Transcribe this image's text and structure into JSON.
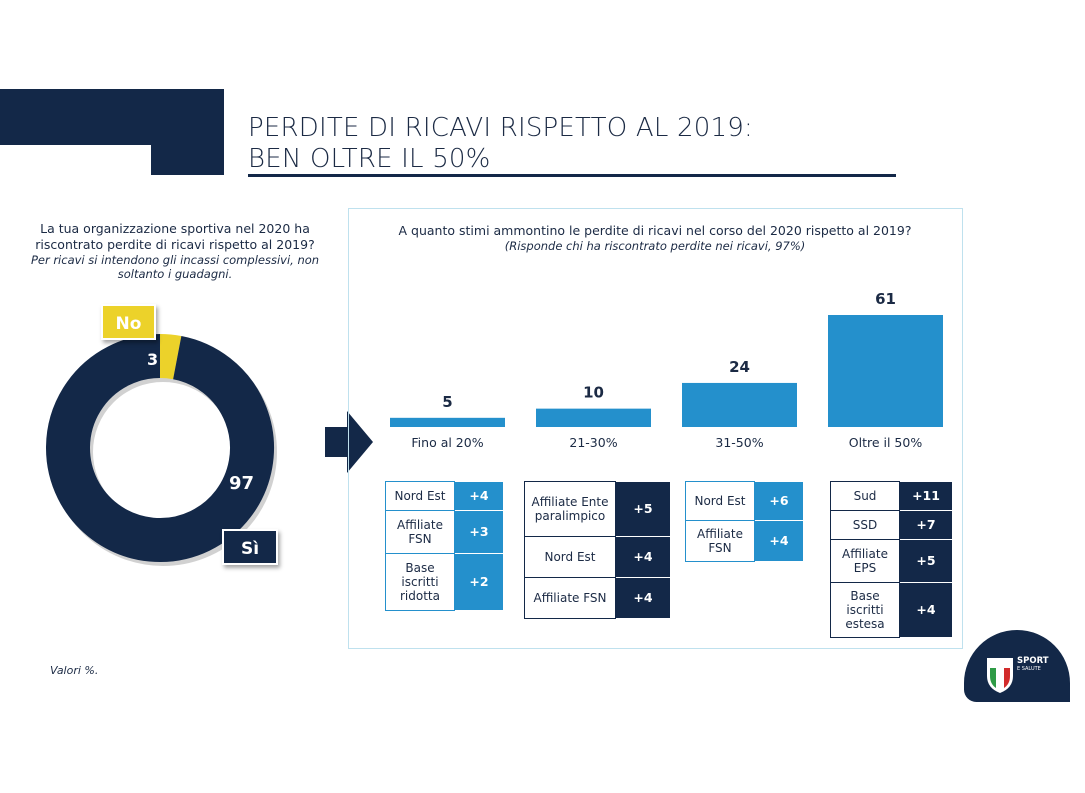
{
  "header": {
    "title_line1": "PERDITE DI RICAVI RISPETTO AL 2019:",
    "title_line2": "BEN OLTRE IL 50%"
  },
  "left": {
    "question": "La tua organizzazione sportiva nel 2020 ha riscontrato perdite di ricavi rispetto al 2019?",
    "question_note": "Per ricavi si intendono gli incassi complessivi, non soltanto i guadagni.",
    "note": "Valori %."
  },
  "right": {
    "question": "A quanto stimi ammontino le perdite di ricavi nel corso del 2020 rispetto al 2019?",
    "question_note": "(Risponde chi ha riscontrato perdite nei ricavi, 97%)"
  },
  "colors": {
    "navy": "#132848",
    "blue": "#2490cc",
    "yellow": "#ecd22a"
  },
  "chart_data": [
    {
      "type": "pie",
      "variant": "donut",
      "categories": [
        "No",
        "Sì"
      ],
      "values": [
        3,
        97
      ],
      "colors": [
        "#ecd22a",
        "#132848"
      ]
    },
    {
      "type": "bar",
      "categories": [
        "Fino al 20%",
        "21-30%",
        "31-50%",
        "Oltre il 50%"
      ],
      "values": [
        5,
        10,
        24,
        61
      ],
      "ylim": [
        0,
        61
      ],
      "color": "#2490cc",
      "breakdowns": [
        {
          "style": "light",
          "rows": [
            {
              "label": "Nord Est",
              "value": "+4"
            },
            {
              "label": "Affiliate FSN",
              "value": "+3"
            },
            {
              "label": "Base iscritti ridotta",
              "value": "+2"
            }
          ]
        },
        {
          "style": "dark",
          "rows": [
            {
              "label": "Affiliate Ente paralimpico",
              "value": "+5"
            },
            {
              "label": "Nord Est",
              "value": "+4"
            },
            {
              "label": "Affiliate FSN",
              "value": "+4"
            }
          ]
        },
        {
          "style": "light",
          "rows": [
            {
              "label": "Nord Est",
              "value": "+6"
            },
            {
              "label": "Affiliate FSN",
              "value": "+4"
            }
          ]
        },
        {
          "style": "dark",
          "rows": [
            {
              "label": "Sud",
              "value": "+11"
            },
            {
              "label": "SSD",
              "value": "+7"
            },
            {
              "label": "Affiliate EPS",
              "value": "+5"
            },
            {
              "label": "Base iscritti estesa",
              "value": "+4"
            }
          ]
        }
      ]
    }
  ],
  "logo": {
    "italia": "ITALIA",
    "sport": "SPORT",
    "salute": "E SALUTE"
  }
}
